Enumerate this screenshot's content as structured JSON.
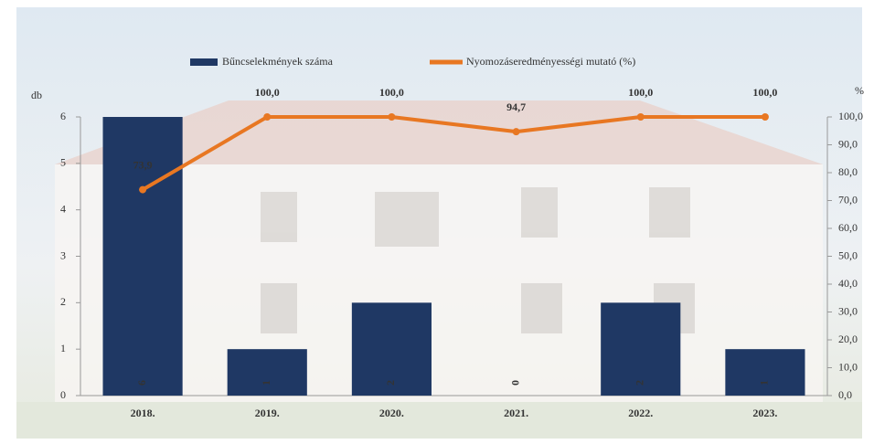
{
  "chart_data": {
    "type": "combo",
    "categories": [
      "2018.",
      "2019.",
      "2020.",
      "2021.",
      "2022.",
      "2023."
    ],
    "series": [
      {
        "name": "Bűncselekmények száma",
        "type": "bar",
        "color": "#1f3864",
        "values": [
          6,
          1,
          2,
          0,
          2,
          1
        ]
      },
      {
        "name": "Nyomozáseredményességi mutató (%)",
        "type": "line",
        "axis": "y2",
        "color": "#e87722",
        "values": [
          73.9,
          100.0,
          100.0,
          94.7,
          100.0,
          100.0
        ],
        "value_labels": [
          "73,9",
          "100,0",
          "100,0",
          "94,7",
          "100,0",
          "100,0"
        ]
      }
    ],
    "ylabel": "db",
    "y2label": "%",
    "ylim": [
      0,
      6
    ],
    "yticks": [
      0,
      1,
      2,
      3,
      4,
      5,
      6
    ],
    "y2lim": [
      0,
      100
    ],
    "y2ticks": [
      {
        "value": 0,
        "label": "0,0"
      },
      {
        "value": 10,
        "label": "10,0"
      },
      {
        "value": 20,
        "label": "20,0"
      },
      {
        "value": 30,
        "label": "30,0"
      },
      {
        "value": 40,
        "label": "40,0"
      },
      {
        "value": 50,
        "label": "50,0"
      },
      {
        "value": 60,
        "label": "60,0"
      },
      {
        "value": 70,
        "label": "70,0"
      },
      {
        "value": 80,
        "label": "80,0"
      },
      {
        "value": 90,
        "label": "90,0"
      },
      {
        "value": 100,
        "label": "100,0"
      }
    ],
    "legend": "top",
    "grid": false
  }
}
